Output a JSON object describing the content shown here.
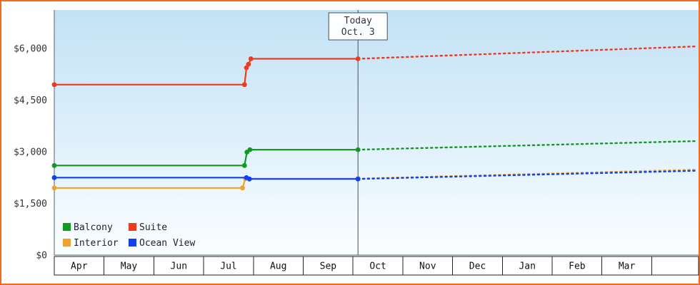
{
  "frame": {
    "border_color": "#f26c21"
  },
  "chart_data": {
    "type": "line",
    "title": "",
    "x_months": [
      "Apr",
      "May",
      "Jun",
      "Jul",
      "Aug",
      "Sep",
      "Oct",
      "Nov",
      "Dec",
      "Jan",
      "Feb",
      "Mar"
    ],
    "ylim": [
      0,
      6000
    ],
    "y_ticks": [
      {
        "value": 0,
        "label": "$0"
      },
      {
        "value": 1500,
        "label": "$1,500"
      },
      {
        "value": 3000,
        "label": "$3,000"
      },
      {
        "value": 4500,
        "label": "$4,500"
      },
      {
        "value": 6000,
        "label": "$6,000"
      }
    ],
    "today": {
      "label_line1": "Today",
      "label_line2": "Oct. 3",
      "month_x": 6.1
    },
    "series": [
      {
        "id": "interior",
        "name": "Interior",
        "color": "#f0a32b",
        "solid": [
          [
            0,
            1950
          ],
          [
            3.78,
            1950
          ],
          [
            3.84,
            2220
          ],
          [
            6.1,
            2220
          ]
        ],
        "dotted": [
          [
            6.1,
            2220
          ],
          [
            12.9,
            2480
          ]
        ],
        "markers": [
          [
            0,
            1950
          ],
          [
            3.78,
            1950
          ],
          [
            3.84,
            2220
          ],
          [
            6.1,
            2220
          ]
        ]
      },
      {
        "id": "oceanview",
        "name": "Ocean View",
        "color": "#1141ee",
        "solid": [
          [
            0,
            2250
          ],
          [
            3.86,
            2250
          ],
          [
            3.92,
            2210
          ],
          [
            6.1,
            2210
          ]
        ],
        "dotted": [
          [
            6.1,
            2210
          ],
          [
            12.9,
            2450
          ]
        ],
        "markers": [
          [
            0,
            2250
          ],
          [
            3.86,
            2250
          ],
          [
            3.92,
            2210
          ],
          [
            6.1,
            2210
          ]
        ]
      },
      {
        "id": "balcony",
        "name": "Balcony",
        "color": "#12991f",
        "solid": [
          [
            0,
            2600
          ],
          [
            3.82,
            2600
          ],
          [
            3.87,
            2990
          ],
          [
            3.93,
            3060
          ],
          [
            6.1,
            3060
          ]
        ],
        "dotted": [
          [
            6.1,
            3060
          ],
          [
            12.9,
            3310
          ]
        ],
        "markers": [
          [
            0,
            2600
          ],
          [
            3.82,
            2600
          ],
          [
            3.87,
            2990
          ],
          [
            3.93,
            3060
          ],
          [
            6.1,
            3060
          ]
        ]
      },
      {
        "id": "suite",
        "name": "Suite",
        "color": "#ee3b20",
        "solid": [
          [
            0,
            4950
          ],
          [
            3.82,
            4950
          ],
          [
            3.86,
            5440
          ],
          [
            3.9,
            5540
          ],
          [
            3.95,
            5700
          ],
          [
            6.1,
            5700
          ]
        ],
        "dotted": [
          [
            6.1,
            5700
          ],
          [
            12.9,
            6060
          ]
        ],
        "markers": [
          [
            0,
            4950
          ],
          [
            3.82,
            4950
          ],
          [
            3.86,
            5440
          ],
          [
            3.9,
            5540
          ],
          [
            3.95,
            5700
          ],
          [
            6.1,
            5700
          ]
        ]
      }
    ],
    "legend_rows": [
      [
        "Balcony",
        "Suite"
      ],
      [
        "Interior",
        "Ocean View"
      ]
    ]
  }
}
